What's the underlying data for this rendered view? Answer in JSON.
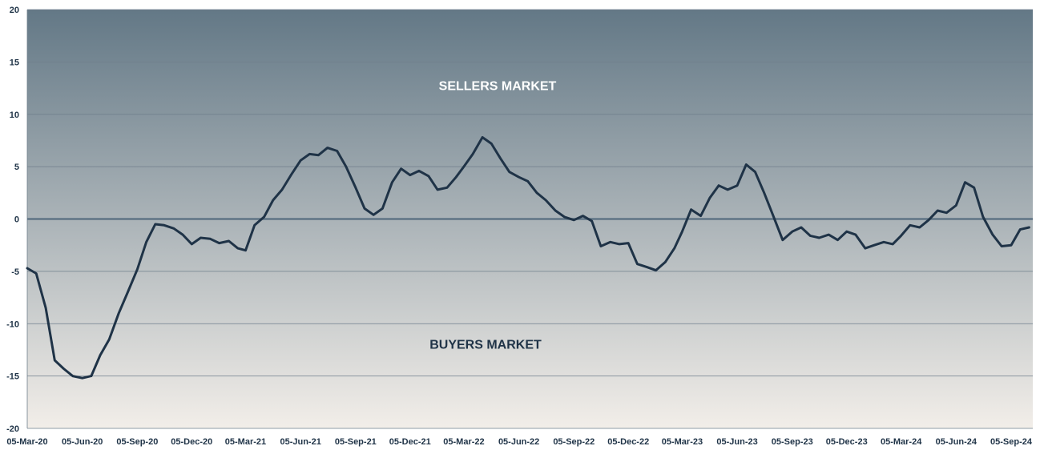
{
  "chart_data": {
    "type": "line",
    "ylim": [
      -20,
      20
    ],
    "yticks": [
      20,
      15,
      10,
      5,
      0,
      -5,
      -10,
      -15,
      -20
    ],
    "xticks": [
      "05-Mar-20",
      "05-Jun-20",
      "05-Sep-20",
      "05-Dec-20",
      "05-Mar-21",
      "05-Jun-21",
      "05-Sep-21",
      "05-Dec-21",
      "05-Mar-22",
      "05-Jun-22",
      "05-Sep-22",
      "05-Dec-22",
      "05-Mar-23",
      "05-Jun-23",
      "05-Sep-23",
      "05-Dec-23",
      "05-Mar-24",
      "05-Jun-24",
      "05-Sep-24"
    ],
    "grid": true,
    "annotations": {
      "upper": "SELLERS MARKET",
      "lower": "BUYERS MARKET"
    },
    "colors": {
      "line": "#1f3347",
      "zero_line": "#5f7485",
      "grid": "#6e7e8b",
      "bg_top": "#637886",
      "bg_bottom": "#f2eee9",
      "upper_label": "#ffffff",
      "lower_label": "#1f3347"
    },
    "series": [
      {
        "x": [
          "2020-03-05",
          "2020-03-20",
          "2020-04-05",
          "2020-04-20",
          "2020-05-05",
          "2020-05-20",
          "2020-06-05",
          "2020-06-20",
          "2020-07-05",
          "2020-07-20",
          "2020-08-05",
          "2020-08-20",
          "2020-09-05",
          "2020-09-20",
          "2020-10-05",
          "2020-10-20",
          "2020-11-05",
          "2020-11-20",
          "2020-12-05",
          "2020-12-20",
          "2021-01-05",
          "2021-01-20",
          "2021-02-05",
          "2021-02-20",
          "2021-03-05",
          "2021-03-20",
          "2021-04-05",
          "2021-04-20",
          "2021-05-05",
          "2021-05-20",
          "2021-06-05",
          "2021-06-20",
          "2021-07-05",
          "2021-07-20",
          "2021-08-05",
          "2021-08-20",
          "2021-09-05",
          "2021-09-20",
          "2021-10-05",
          "2021-10-20",
          "2021-11-05",
          "2021-11-20",
          "2021-12-05",
          "2021-12-20",
          "2022-01-05",
          "2022-01-20",
          "2022-02-05",
          "2022-02-20",
          "2022-03-05",
          "2022-03-20",
          "2022-04-05",
          "2022-04-20",
          "2022-05-05",
          "2022-05-20",
          "2022-06-05",
          "2022-06-20",
          "2022-07-05",
          "2022-07-20",
          "2022-08-05",
          "2022-08-20",
          "2022-09-05",
          "2022-09-20",
          "2022-10-05",
          "2022-10-20",
          "2022-11-05",
          "2022-11-20",
          "2022-12-05",
          "2022-12-20",
          "2023-01-05",
          "2023-01-20",
          "2023-02-05",
          "2023-02-20",
          "2023-03-05",
          "2023-03-20",
          "2023-04-05",
          "2023-04-20",
          "2023-05-05",
          "2023-05-20",
          "2023-06-05",
          "2023-06-20",
          "2023-07-05",
          "2023-07-20",
          "2023-08-05",
          "2023-08-20",
          "2023-09-05",
          "2023-09-20",
          "2023-10-05",
          "2023-10-20",
          "2023-11-05",
          "2023-11-20",
          "2023-12-05",
          "2023-12-20",
          "2024-01-05",
          "2024-01-20",
          "2024-02-05",
          "2024-02-20",
          "2024-03-05",
          "2024-03-20",
          "2024-04-05",
          "2024-04-20",
          "2024-05-05",
          "2024-05-20",
          "2024-06-05",
          "2024-06-20",
          "2024-07-05",
          "2024-07-20",
          "2024-08-05",
          "2024-08-20",
          "2024-09-05",
          "2024-09-20",
          "2024-10-05"
        ],
        "y": [
          -4.7,
          -5.2,
          -8.5,
          -13.5,
          -14.3,
          -15.0,
          -15.2,
          -15.0,
          -13.0,
          -11.5,
          -9.0,
          -7.0,
          -4.8,
          -2.2,
          -0.5,
          -0.6,
          -0.9,
          -1.5,
          -2.4,
          -1.8,
          -1.9,
          -2.3,
          -2.1,
          -2.8,
          -3.0,
          -0.6,
          0.2,
          1.8,
          2.8,
          4.2,
          5.6,
          6.2,
          6.1,
          6.8,
          6.5,
          5.0,
          3.0,
          1.0,
          0.4,
          1.0,
          3.5,
          4.8,
          4.2,
          4.6,
          4.1,
          2.8,
          3.0,
          4.0,
          5.0,
          6.2,
          7.8,
          7.2,
          5.8,
          4.5,
          4.0,
          3.6,
          2.5,
          1.8,
          0.8,
          0.2,
          -0.1,
          0.3,
          -0.2,
          -2.6,
          -2.2,
          -2.4,
          -2.3,
          -4.3,
          -4.6,
          -4.9,
          -4.1,
          -2.8,
          -1.2,
          0.9,
          0.3,
          2.0,
          3.2,
          2.8,
          3.2,
          5.2,
          4.5,
          2.5,
          0.2,
          -2.0,
          -1.2,
          -0.8,
          -1.6,
          -1.8,
          -1.5,
          -2.0,
          -1.2,
          -1.5,
          -2.8,
          -2.5,
          -2.2,
          -2.4,
          -1.6,
          -0.6,
          -0.8,
          -0.1,
          0.8,
          0.6,
          1.3,
          3.5,
          3.0,
          0.2,
          -1.5,
          -2.6,
          -2.5,
          -1.0,
          -0.8
        ]
      }
    ]
  }
}
